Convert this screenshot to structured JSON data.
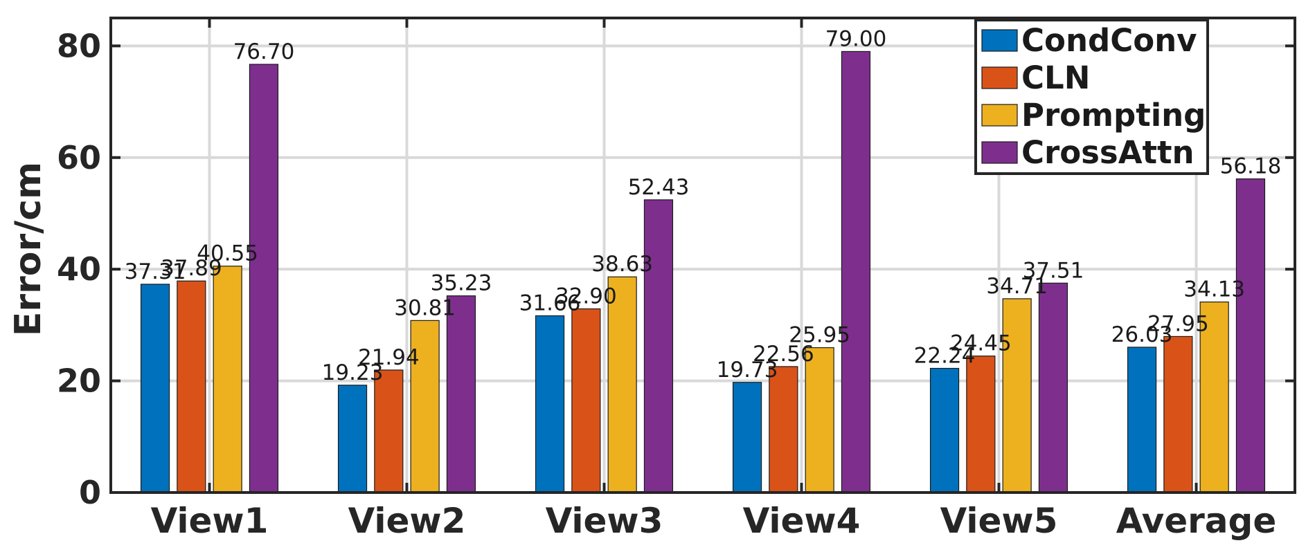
{
  "chart_data": {
    "type": "bar",
    "title": "",
    "xlabel": "",
    "ylabel": "Error/cm",
    "ylim": [
      0,
      85
    ],
    "yticks": [
      0,
      20,
      40,
      60,
      80
    ],
    "grid": true,
    "legend_position": "top-right",
    "categories": [
      "View1",
      "View2",
      "View3",
      "View4",
      "View5",
      "Average"
    ],
    "series": [
      {
        "name": "CondConv",
        "color": "#0072BD",
        "values": [
          37.31,
          19.23,
          31.66,
          19.73,
          22.24,
          26.03
        ],
        "labels": [
          "37.31",
          "19.23",
          "31.66",
          "19.73",
          "22.24",
          "26.03"
        ]
      },
      {
        "name": "CLN",
        "color": "#D95319",
        "values": [
          37.89,
          21.94,
          32.9,
          22.56,
          24.45,
          27.95
        ],
        "labels": [
          "37.89",
          "21.94",
          "32.90",
          "22.56",
          "24.45",
          "27.95"
        ]
      },
      {
        "name": "Prompting",
        "color": "#EDB120",
        "values": [
          40.55,
          30.81,
          38.63,
          25.95,
          34.71,
          34.13
        ],
        "labels": [
          "40.55",
          "30.81",
          "38.63",
          "25.95",
          "34.71",
          "34.13"
        ]
      },
      {
        "name": "CrossAttn",
        "color": "#7E2F8E",
        "values": [
          76.7,
          35.23,
          52.43,
          79.0,
          37.51,
          56.18
        ],
        "labels": [
          "76.70",
          "35.23",
          "52.43",
          "79.00",
          "37.51",
          "56.18"
        ]
      }
    ]
  }
}
